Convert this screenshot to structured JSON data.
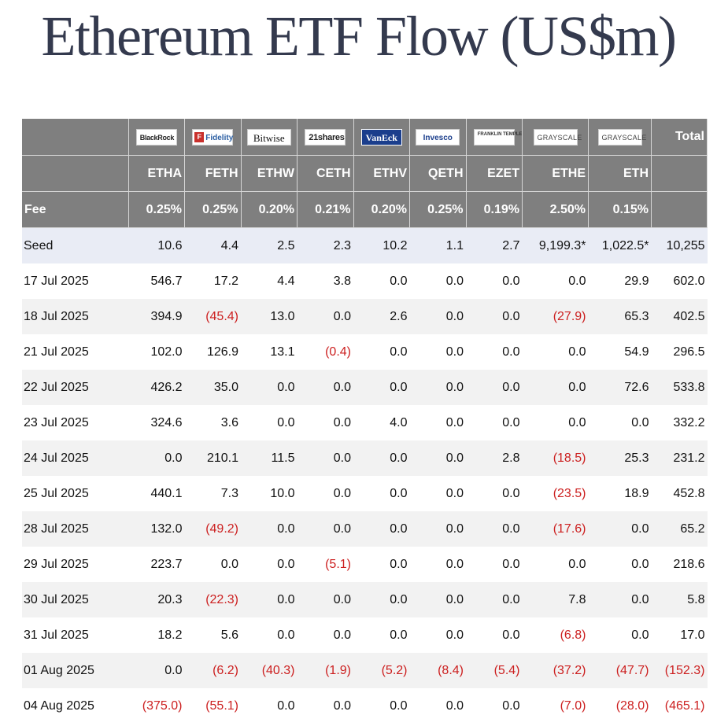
{
  "title": "Ethereum ETF Flow (US$m)",
  "header": {
    "total_label": "Total",
    "fee_label": "Fee",
    "logos": [
      "BlackRock",
      "Fidelity",
      "Bitwise",
      "21shares",
      "VanEck",
      "Invesco",
      "FRANKLIN TEMPLETON",
      "GRAYSCALE",
      "GRAYSCALE"
    ],
    "tickers": [
      "ETHA",
      "FETH",
      "ETHW",
      "CETH",
      "ETHV",
      "QETH",
      "EZET",
      "ETHE",
      "ETH"
    ],
    "fees": [
      "0.25%",
      "0.25%",
      "0.20%",
      "0.21%",
      "0.20%",
      "0.25%",
      "0.19%",
      "2.50%",
      "0.15%"
    ]
  },
  "rows": [
    {
      "date": "Seed",
      "values": [
        "10.6",
        "4.4",
        "2.5",
        "2.3",
        "10.2",
        "1.1",
        "2.7",
        "9,199.3*",
        "1,022.5*",
        "10,255"
      ]
    },
    {
      "date": "17 Jul 2025",
      "values": [
        "546.7",
        "17.2",
        "4.4",
        "3.8",
        "0.0",
        "0.0",
        "0.0",
        "0.0",
        "29.9",
        "602.0"
      ]
    },
    {
      "date": "18 Jul 2025",
      "values": [
        "394.9",
        "(45.4)",
        "13.0",
        "0.0",
        "2.6",
        "0.0",
        "0.0",
        "(27.9)",
        "65.3",
        "402.5"
      ]
    },
    {
      "date": "21 Jul 2025",
      "values": [
        "102.0",
        "126.9",
        "13.1",
        "(0.4)",
        "0.0",
        "0.0",
        "0.0",
        "0.0",
        "54.9",
        "296.5"
      ]
    },
    {
      "date": "22 Jul 2025",
      "values": [
        "426.2",
        "35.0",
        "0.0",
        "0.0",
        "0.0",
        "0.0",
        "0.0",
        "0.0",
        "72.6",
        "533.8"
      ]
    },
    {
      "date": "23 Jul 2025",
      "values": [
        "324.6",
        "3.6",
        "0.0",
        "0.0",
        "4.0",
        "0.0",
        "0.0",
        "0.0",
        "0.0",
        "332.2"
      ]
    },
    {
      "date": "24 Jul 2025",
      "values": [
        "0.0",
        "210.1",
        "11.5",
        "0.0",
        "0.0",
        "0.0",
        "2.8",
        "(18.5)",
        "25.3",
        "231.2"
      ]
    },
    {
      "date": "25 Jul 2025",
      "values": [
        "440.1",
        "7.3",
        "10.0",
        "0.0",
        "0.0",
        "0.0",
        "0.0",
        "(23.5)",
        "18.9",
        "452.8"
      ]
    },
    {
      "date": "28 Jul 2025",
      "values": [
        "132.0",
        "(49.2)",
        "0.0",
        "0.0",
        "0.0",
        "0.0",
        "0.0",
        "(17.6)",
        "0.0",
        "65.2"
      ]
    },
    {
      "date": "29 Jul 2025",
      "values": [
        "223.7",
        "0.0",
        "0.0",
        "(5.1)",
        "0.0",
        "0.0",
        "0.0",
        "0.0",
        "0.0",
        "218.6"
      ]
    },
    {
      "date": "30 Jul 2025",
      "values": [
        "20.3",
        "(22.3)",
        "0.0",
        "0.0",
        "0.0",
        "0.0",
        "0.0",
        "7.8",
        "0.0",
        "5.8"
      ]
    },
    {
      "date": "31 Jul 2025",
      "values": [
        "18.2",
        "5.6",
        "0.0",
        "0.0",
        "0.0",
        "0.0",
        "0.0",
        "(6.8)",
        "0.0",
        "17.0"
      ]
    },
    {
      "date": "01 Aug 2025",
      "values": [
        "0.0",
        "(6.2)",
        "(40.3)",
        "(1.9)",
        "(5.2)",
        "(8.4)",
        "(5.4)",
        "(37.2)",
        "(47.7)",
        "(152.3)"
      ]
    },
    {
      "date": "04 Aug 2025",
      "values": [
        "(375.0)",
        "(55.1)",
        "0.0",
        "0.0",
        "0.0",
        "0.0",
        "0.0",
        "(7.0)",
        "(28.0)",
        "(465.1)"
      ]
    }
  ],
  "colors": {
    "header_bg": "#7f7f7f",
    "seed_row_bg": "#e9ecf5",
    "stripe_bg": "#f2f2f2",
    "negative": "#cc1f1f",
    "title": "#343a4e"
  }
}
